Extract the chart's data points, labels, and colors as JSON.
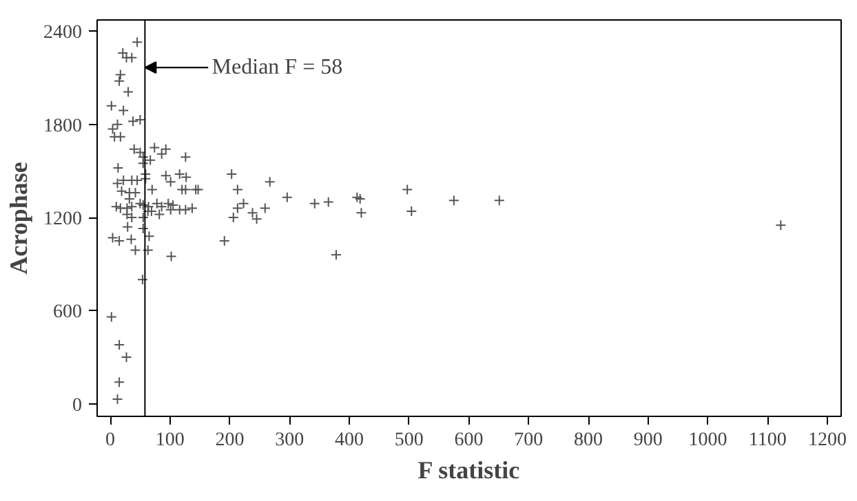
{
  "chart_data": {
    "type": "scatter",
    "xlabel": "F statistic",
    "ylabel": "Acrophase",
    "x": [
      45,
      21,
      27,
      36,
      17,
      15,
      30,
      2,
      22,
      38,
      50,
      12,
      4,
      7,
      17,
      40,
      50,
      55,
      74,
      86,
      93,
      67,
      126,
      55,
      13,
      59,
      93,
      116,
      127,
      36,
      45,
      12,
      22,
      59,
      70,
      19,
      32,
      42,
      101,
      120,
      126,
      143,
      147,
      32,
      10,
      17,
      28,
      36,
      50,
      55,
      64,
      78,
      86,
      97,
      105,
      101,
      69,
      82,
      116,
      126,
      137,
      55,
      63,
      28,
      36,
      29,
      55,
      4,
      15,
      35,
      42,
      65,
      63,
      102,
      54,
      2,
      15,
      27,
      15,
      12,
      203,
      213,
      267,
      213,
      223,
      206,
      191,
      238,
      245,
      259,
      296,
      342,
      365,
      378,
      413,
      418,
      420,
      497,
      504,
      575,
      651,
      1122
    ],
    "values": [
      2330,
      2260,
      2230,
      2230,
      2120,
      2080,
      2010,
      1920,
      1890,
      1820,
      1830,
      1800,
      1770,
      1720,
      1720,
      1640,
      1620,
      1590,
      1650,
      1610,
      1640,
      1570,
      1590,
      1550,
      1520,
      1480,
      1470,
      1480,
      1460,
      1440,
      1440,
      1420,
      1440,
      1450,
      1380,
      1370,
      1360,
      1360,
      1430,
      1380,
      1380,
      1380,
      1380,
      1320,
      1270,
      1260,
      1260,
      1270,
      1290,
      1280,
      1270,
      1290,
      1270,
      1290,
      1280,
      1250,
      1240,
      1220,
      1250,
      1250,
      1260,
      1200,
      1240,
      1220,
      1200,
      1140,
      1130,
      1070,
      1050,
      1060,
      990,
      1080,
      990,
      950,
      800,
      560,
      380,
      300,
      140,
      30,
      1480,
      1380,
      1430,
      1260,
      1290,
      1200,
      1050,
      1230,
      1190,
      1260,
      1330,
      1290,
      1300,
      960,
      1330,
      1320,
      1230,
      1380,
      1240,
      1310,
      1310,
      1150
    ],
    "color": "#555555",
    "marker": "cross",
    "xlim": [
      -22,
      1223
    ],
    "ylim": [
      -81,
      2473
    ],
    "xticks": [
      0,
      100,
      200,
      300,
      400,
      500,
      600,
      700,
      800,
      900,
      1000,
      1100,
      1200
    ],
    "yticks": [
      0,
      600,
      1200,
      1800,
      2400
    ],
    "grid": false,
    "ref_lines": [
      {
        "axis": "x",
        "value": 58,
        "label": "Median F = 58",
        "color": "#000000"
      }
    ]
  }
}
